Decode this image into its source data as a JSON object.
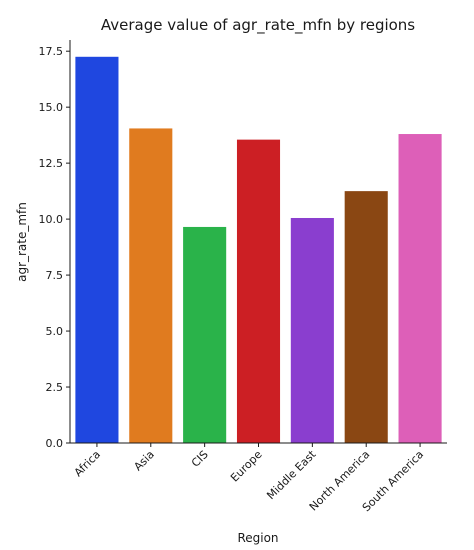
{
  "chart_data": {
    "type": "bar",
    "title": "Average value of agr_rate_mfn by regions",
    "xlabel": "Region",
    "ylabel": "agr_rate_mfn",
    "categories": [
      "Africa",
      "Asia",
      "CIS",
      "Europe",
      "Middle East",
      "North America",
      "South America"
    ],
    "values": [
      17.25,
      14.05,
      9.65,
      13.55,
      10.05,
      11.25,
      13.8
    ],
    "colors": [
      "#1f47e0",
      "#e07b1f",
      "#2ab34a",
      "#cc1f24",
      "#8a3ecf",
      "#8a4713",
      "#dd5fb8"
    ],
    "ylim": [
      0,
      18
    ],
    "yticks": [
      0.0,
      2.5,
      5.0,
      7.5,
      10.0,
      12.5,
      15.0,
      17.5
    ],
    "ytick_labels": [
      "0.0",
      "2.5",
      "5.0",
      "7.5",
      "10.0",
      "12.5",
      "15.0",
      "17.5"
    ],
    "grid": false,
    "legend": "none"
  }
}
